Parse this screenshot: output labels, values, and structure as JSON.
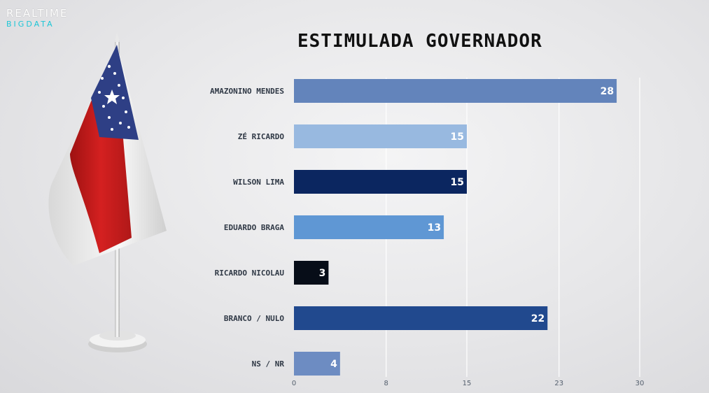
{
  "brand": {
    "line1": "REALTIME",
    "line2": "BIGDATA"
  },
  "chart_data": {
    "type": "bar",
    "orientation": "horizontal",
    "title": "ESTIMULADA GOVERNADOR",
    "categories": [
      "AMAZONINO MENDES",
      "ZÉ RICARDO",
      "WILSON LIMA",
      "EDUARDO BRAGA",
      "RICARDO NICOLAU",
      "BRANCO / NULO",
      "NS / NR"
    ],
    "values": [
      28,
      15,
      15,
      13,
      3,
      22,
      4
    ],
    "colors": [
      "#6384bb",
      "#98b9e0",
      "#0b2660",
      "#5f97d4",
      "#070d18",
      "#21498e",
      "#6d8cc2"
    ],
    "xticks": [
      0,
      8,
      15,
      23,
      30
    ],
    "xlim": [
      0,
      30
    ],
    "grid": true
  }
}
